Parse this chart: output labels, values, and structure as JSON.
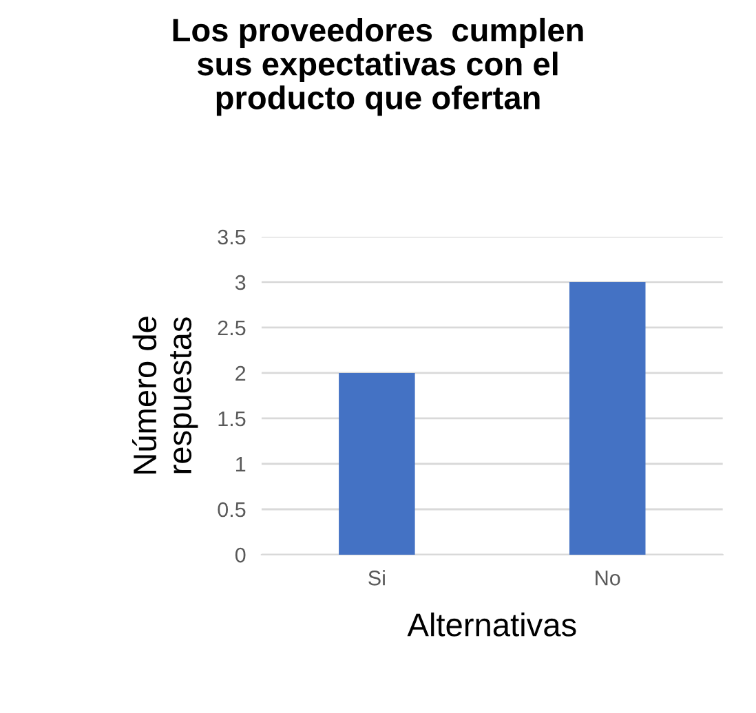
{
  "chart_data": {
    "type": "bar",
    "title": "Los proveedores  cumplen\nsus expectativas con el\nproducto que ofertan",
    "xlabel": "Alternativas",
    "ylabel": "Número de\nrespuestas",
    "categories": [
      "Si",
      "No"
    ],
    "values": [
      2,
      3
    ],
    "color": "#4472c4",
    "ylim": [
      0,
      3.5
    ],
    "yticks": [
      0,
      0.5,
      1,
      1.5,
      2,
      2.5,
      3,
      3.5
    ],
    "grid": "y",
    "legend": false
  }
}
